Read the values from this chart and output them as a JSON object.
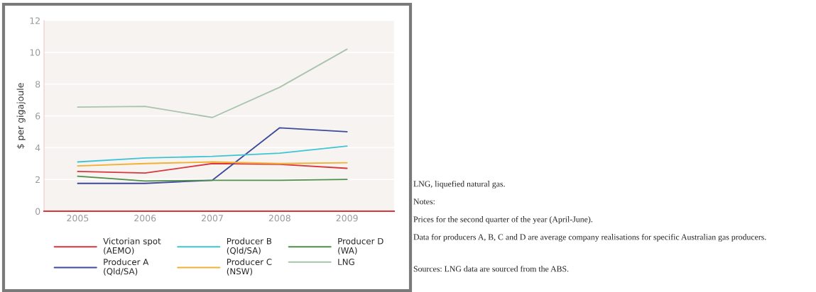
{
  "chart_data": {
    "type": "line",
    "ylabel": "$ per gigajoule",
    "categories": [
      "2005",
      "2006",
      "2007",
      "2008",
      "2009"
    ],
    "series": [
      {
        "name": "Victorian spot\n(AEMO)",
        "color": "#d9363e",
        "values": [
          2.5,
          2.4,
          3.0,
          2.95,
          2.7
        ]
      },
      {
        "name": "Producer A\n(Qld/SA)",
        "color": "#3d4a9c",
        "values": [
          1.75,
          1.75,
          1.95,
          5.25,
          5.0
        ]
      },
      {
        "name": "Producer B\n(Qld/SA)",
        "color": "#3fc4d6",
        "values": [
          3.1,
          3.35,
          3.45,
          3.65,
          4.1
        ]
      },
      {
        "name": "Producer C\n(NSW)",
        "color": "#f2b134",
        "values": [
          2.85,
          3.0,
          3.1,
          3.0,
          3.05
        ]
      },
      {
        "name": "Producer D\n(WA)",
        "color": "#4f8f4a",
        "values": [
          2.2,
          1.9,
          1.95,
          1.95,
          2.0
        ]
      },
      {
        "name": "LNG",
        "color": "#a9c4ad",
        "values": [
          6.55,
          6.6,
          5.9,
          7.8,
          10.2
        ]
      }
    ],
    "ylim": [
      0,
      12
    ],
    "yticks": [
      0,
      2,
      4,
      6,
      8,
      10,
      12
    ],
    "grid": "y",
    "legend": "bottom",
    "annotations": [
      "LNG, liquefied natural gas.",
      "Notes:",
      "Prices for the second quarter of the year (April-June).",
      "Data for producers A, B, C and D are average company realisations for specific Australian gas producers.",
      "Sources: LNG data are sourced from the ABS."
    ]
  }
}
